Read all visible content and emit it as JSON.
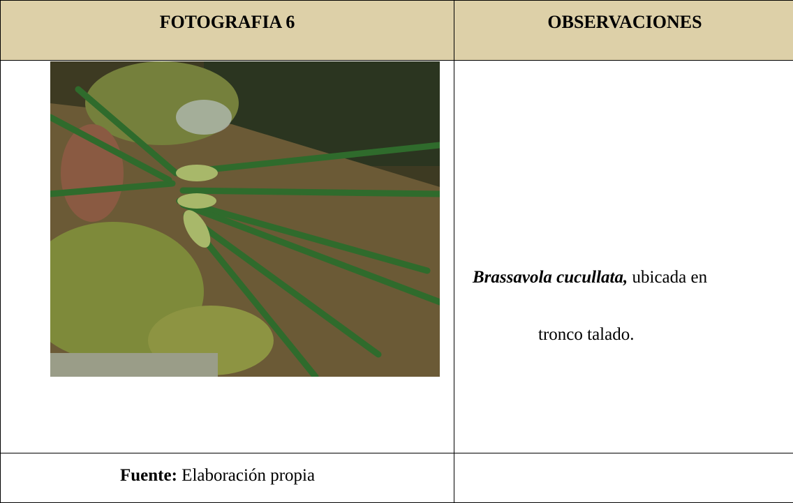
{
  "table": {
    "header": [
      "FOTOGRAFIA 6",
      "OBSERVACIONES"
    ],
    "observation": {
      "species": "Brassavola cucullata,",
      "text": "ubicada en",
      "continuation": "tronco talado."
    },
    "source": {
      "label": "Fuente:",
      "text": "Elaboración propia"
    }
  }
}
